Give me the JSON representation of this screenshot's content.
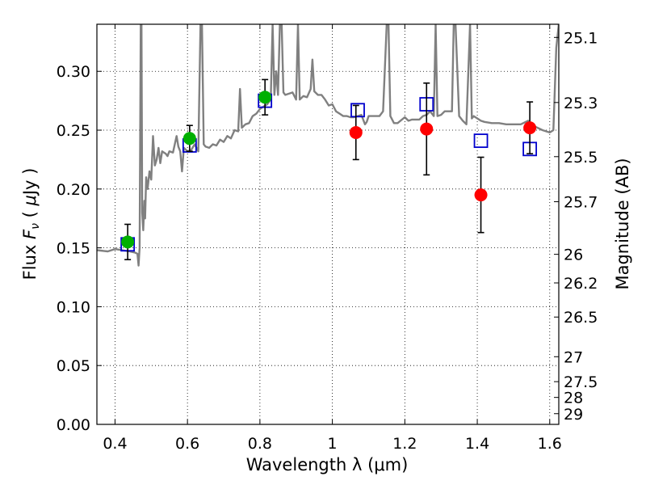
{
  "chart_data": {
    "type": "scatter",
    "xlabel": "Wavelength  λ (μm)",
    "ylabel_parts": [
      "Flux ",
      "F",
      "ν",
      "  ( ",
      "μ",
      "Jy )"
    ],
    "ylabel_right": "Magnitude (AB)",
    "xlim": [
      0.35,
      1.625
    ],
    "ylim": [
      0.0,
      0.34
    ],
    "grid": true,
    "x_ticks": [
      0.4,
      0.6,
      0.8,
      1.0,
      1.2,
      1.4,
      1.6
    ],
    "x_tick_labels": [
      "0.4",
      "0.6",
      "0.8",
      "1",
      "1.2",
      "1.4",
      "1.6"
    ],
    "y_ticks": [
      0.0,
      0.05,
      0.1,
      0.15,
      0.2,
      0.25,
      0.3
    ],
    "y_tick_labels": [
      "0.00",
      "0.05",
      "0.10",
      "0.15",
      "0.20",
      "0.25",
      "0.30"
    ],
    "right_ticks": [
      {
        "label": "25.1",
        "flux": 0.3288
      },
      {
        "label": "25.3",
        "flux": 0.2735
      },
      {
        "label": "25.5",
        "flux": 0.2275
      },
      {
        "label": "25.7",
        "flux": 0.1892
      },
      {
        "label": "26",
        "flux": 0.1445
      },
      {
        "label": "26.2",
        "flux": 0.1202
      },
      {
        "label": "26.5",
        "flux": 0.0912
      },
      {
        "label": "27",
        "flux": 0.0575
      },
      {
        "label": "27.5",
        "flux": 0.0363
      },
      {
        "label": "28",
        "flux": 0.0229
      },
      {
        "label": "29",
        "flux": 0.0091
      }
    ],
    "colors": {
      "spectrum": "#808080",
      "green_points": "#00b000",
      "red_points": "#ff0000",
      "model_squares": "#0000cc",
      "error_bars": "#000000"
    },
    "series": [
      {
        "marker": "circle",
        "color": "green",
        "points": [
          {
            "x": 0.435,
            "y": 0.155,
            "err": 0.015
          },
          {
            "x": 0.606,
            "y": 0.243,
            "err": 0.011
          },
          {
            "x": 0.814,
            "y": 0.278,
            "err": 0.015
          }
        ]
      },
      {
        "marker": "circle",
        "color": "red",
        "points": [
          {
            "x": 1.065,
            "y": 0.248,
            "err": 0.023
          },
          {
            "x": 1.26,
            "y": 0.251,
            "err": 0.039
          },
          {
            "x": 1.41,
            "y": 0.195,
            "err": 0.032
          },
          {
            "x": 1.545,
            "y": 0.252,
            "err": 0.022
          }
        ]
      },
      {
        "marker": "open-square",
        "color": "blue",
        "points": [
          {
            "x": 0.435,
            "y": 0.153
          },
          {
            "x": 0.606,
            "y": 0.237
          },
          {
            "x": 0.814,
            "y": 0.275
          },
          {
            "x": 1.07,
            "y": 0.267
          },
          {
            "x": 1.26,
            "y": 0.272
          },
          {
            "x": 1.41,
            "y": 0.241
          },
          {
            "x": 1.545,
            "y": 0.234
          }
        ]
      },
      {
        "line": "spectrum",
        "color": "gray",
        "points": [
          [
            0.35,
            0.148
          ],
          [
            0.38,
            0.147
          ],
          [
            0.4,
            0.149
          ],
          [
            0.42,
            0.148
          ],
          [
            0.44,
            0.147
          ],
          [
            0.455,
            0.146
          ],
          [
            0.462,
            0.145
          ],
          [
            0.465,
            0.135
          ],
          [
            0.468,
            0.15
          ],
          [
            0.471,
            0.34
          ],
          [
            0.473,
            0.34
          ],
          [
            0.475,
            0.18
          ],
          [
            0.478,
            0.165
          ],
          [
            0.481,
            0.19
          ],
          [
            0.483,
            0.175
          ],
          [
            0.486,
            0.21
          ],
          [
            0.49,
            0.2
          ],
          [
            0.495,
            0.215
          ],
          [
            0.5,
            0.208
          ],
          [
            0.505,
            0.245
          ],
          [
            0.51,
            0.22
          ],
          [
            0.515,
            0.225
          ],
          [
            0.52,
            0.235
          ],
          [
            0.525,
            0.222
          ],
          [
            0.53,
            0.232
          ],
          [
            0.54,
            0.23
          ],
          [
            0.545,
            0.228
          ],
          [
            0.55,
            0.232
          ],
          [
            0.56,
            0.231
          ],
          [
            0.57,
            0.245
          ],
          [
            0.575,
            0.236
          ],
          [
            0.58,
            0.232
          ],
          [
            0.585,
            0.215
          ],
          [
            0.59,
            0.235
          ],
          [
            0.6,
            0.232
          ],
          [
            0.61,
            0.233
          ],
          [
            0.62,
            0.238
          ],
          [
            0.63,
            0.232
          ],
          [
            0.636,
            0.34
          ],
          [
            0.64,
            0.34
          ],
          [
            0.645,
            0.238
          ],
          [
            0.65,
            0.236
          ],
          [
            0.66,
            0.235
          ],
          [
            0.67,
            0.238
          ],
          [
            0.68,
            0.237
          ],
          [
            0.69,
            0.242
          ],
          [
            0.7,
            0.24
          ],
          [
            0.71,
            0.245
          ],
          [
            0.72,
            0.243
          ],
          [
            0.73,
            0.25
          ],
          [
            0.74,
            0.249
          ],
          [
            0.745,
            0.285
          ],
          [
            0.75,
            0.252
          ],
          [
            0.76,
            0.255
          ],
          [
            0.77,
            0.256
          ],
          [
            0.78,
            0.262
          ],
          [
            0.79,
            0.264
          ],
          [
            0.8,
            0.268
          ],
          [
            0.81,
            0.27
          ],
          [
            0.82,
            0.272
          ],
          [
            0.83,
            0.276
          ],
          [
            0.835,
            0.34
          ],
          [
            0.84,
            0.28
          ],
          [
            0.845,
            0.3
          ],
          [
            0.85,
            0.28
          ],
          [
            0.855,
            0.34
          ],
          [
            0.86,
            0.34
          ],
          [
            0.865,
            0.282
          ],
          [
            0.87,
            0.28
          ],
          [
            0.88,
            0.281
          ],
          [
            0.89,
            0.282
          ],
          [
            0.9,
            0.276
          ],
          [
            0.905,
            0.34
          ],
          [
            0.91,
            0.276
          ],
          [
            0.92,
            0.279
          ],
          [
            0.93,
            0.278
          ],
          [
            0.94,
            0.285
          ],
          [
            0.945,
            0.31
          ],
          [
            0.95,
            0.283
          ],
          [
            0.96,
            0.28
          ],
          [
            0.97,
            0.28
          ],
          [
            0.98,
            0.276
          ],
          [
            0.99,
            0.271
          ],
          [
            1.0,
            0.272
          ],
          [
            1.01,
            0.266
          ],
          [
            1.02,
            0.264
          ],
          [
            1.03,
            0.262
          ],
          [
            1.04,
            0.262
          ],
          [
            1.05,
            0.261
          ],
          [
            1.06,
            0.261
          ],
          [
            1.07,
            0.262
          ],
          [
            1.08,
            0.263
          ],
          [
            1.09,
            0.255
          ],
          [
            1.095,
            0.257
          ],
          [
            1.1,
            0.262
          ],
          [
            1.12,
            0.262
          ],
          [
            1.13,
            0.262
          ],
          [
            1.14,
            0.266
          ],
          [
            1.15,
            0.34
          ],
          [
            1.155,
            0.34
          ],
          [
            1.16,
            0.262
          ],
          [
            1.17,
            0.256
          ],
          [
            1.18,
            0.256
          ],
          [
            1.2,
            0.261
          ],
          [
            1.21,
            0.258
          ],
          [
            1.22,
            0.259
          ],
          [
            1.24,
            0.259
          ],
          [
            1.25,
            0.262
          ],
          [
            1.26,
            0.263
          ],
          [
            1.27,
            0.266
          ],
          [
            1.28,
            0.262
          ],
          [
            1.285,
            0.34
          ],
          [
            1.29,
            0.262
          ],
          [
            1.3,
            0.263
          ],
          [
            1.31,
            0.266
          ],
          [
            1.33,
            0.266
          ],
          [
            1.335,
            0.34
          ],
          [
            1.34,
            0.34
          ],
          [
            1.345,
            0.3
          ],
          [
            1.35,
            0.262
          ],
          [
            1.36,
            0.258
          ],
          [
            1.37,
            0.255
          ],
          [
            1.38,
            0.34
          ],
          [
            1.385,
            0.26
          ],
          [
            1.39,
            0.262
          ],
          [
            1.4,
            0.26
          ],
          [
            1.41,
            0.258
          ],
          [
            1.42,
            0.257
          ],
          [
            1.44,
            0.256
          ],
          [
            1.46,
            0.256
          ],
          [
            1.48,
            0.255
          ],
          [
            1.5,
            0.255
          ],
          [
            1.52,
            0.255
          ],
          [
            1.54,
            0.258
          ],
          [
            1.56,
            0.253
          ],
          [
            1.58,
            0.25
          ],
          [
            1.6,
            0.248
          ],
          [
            1.61,
            0.25
          ],
          [
            1.618,
            0.32
          ],
          [
            1.625,
            0.34
          ]
        ]
      }
    ]
  }
}
